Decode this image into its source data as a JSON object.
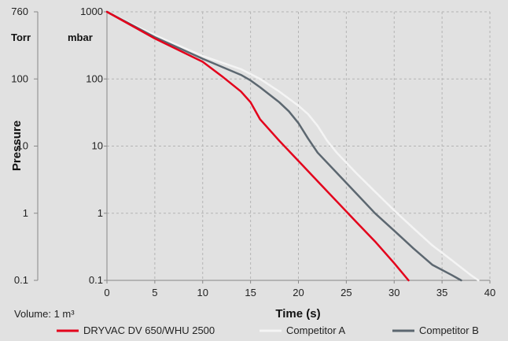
{
  "chart_data": {
    "type": "line",
    "title": "",
    "xlabel": "Time (s)",
    "ylabel": "Pressure",
    "y_scale": "log",
    "xlim": [
      0,
      40
    ],
    "ylim": [
      0.1,
      1000
    ],
    "x_ticks": [
      "0",
      "5",
      "10",
      "15",
      "20",
      "25",
      "30",
      "35",
      "40"
    ],
    "y_ticks_mbar": [
      "0.1",
      "1",
      "10",
      "100",
      "1000"
    ],
    "y_ticks_torr": [
      "0.1",
      "1",
      "10",
      "100",
      "760"
    ],
    "y_unit_left": "Torr",
    "y_unit_right": "mbar",
    "annotation": "Volume: 1 m³",
    "grid": true,
    "legend_position": "bottom",
    "series": [
      {
        "name": "DRYVAC DV 650/WHU 2500",
        "color": "#e3001b",
        "x": [
          0,
          5,
          10,
          12,
          14,
          15,
          16,
          18,
          20,
          22,
          24,
          26,
          28,
          30,
          31.5
        ],
        "y": [
          1000,
          400,
          180,
          110,
          65,
          45,
          25,
          12,
          6,
          3,
          1.5,
          0.75,
          0.38,
          0.18,
          0.1
        ]
      },
      {
        "name": "Competitor A",
        "color": "#f4f4f4",
        "x": [
          0,
          5,
          10,
          14,
          16,
          18,
          20,
          21,
          22,
          23,
          24,
          26,
          28,
          30,
          32,
          34,
          36,
          38,
          38.8
        ],
        "y": [
          1000,
          450,
          220,
          140,
          100,
          65,
          40,
          30,
          20,
          12,
          8,
          4,
          2.1,
          1.1,
          0.6,
          0.33,
          0.2,
          0.12,
          0.1
        ]
      },
      {
        "name": "Competitor B",
        "color": "#5c6770",
        "x": [
          0,
          5,
          10,
          14,
          15,
          16,
          18,
          19,
          20,
          21,
          22,
          24,
          26,
          28,
          30,
          32,
          34,
          36,
          37
        ],
        "y": [
          1000,
          420,
          200,
          115,
          95,
          75,
          45,
          33,
          22,
          13,
          8,
          4,
          2,
          1,
          0.55,
          0.3,
          0.17,
          0.12,
          0.1
        ]
      }
    ]
  }
}
